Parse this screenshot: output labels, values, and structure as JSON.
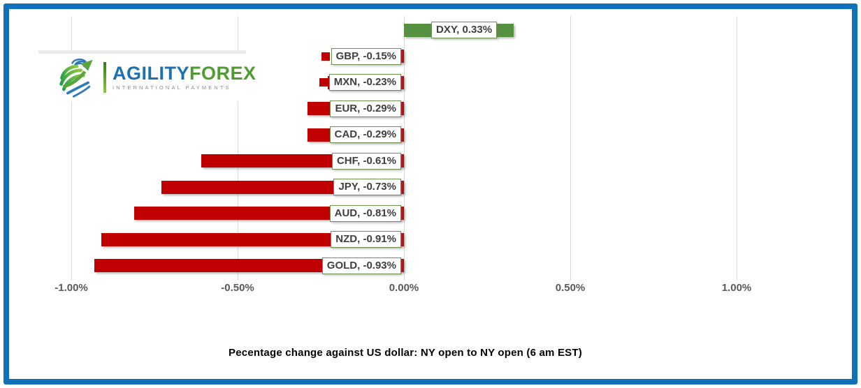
{
  "frame": {
    "border_color": "#0f72b8"
  },
  "logo": {
    "brand_part1": "AGILITY",
    "brand_part2": "FOREX",
    "tagline": "INTERNATIONAL PAYMENTS",
    "colors": {
      "agility_blue": "#1d71ae",
      "forex_green": "#4f9d31",
      "tagline_gray": "#8c8c8c"
    }
  },
  "chart_data": {
    "type": "bar",
    "orientation": "horizontal",
    "title": "Pecentage change against US dollar: NY open to NY open  (6 am EST)",
    "categories": [
      "DXY",
      "GBP",
      "MXN",
      "EUR",
      "CAD",
      "CHF",
      "JPY",
      "AUD",
      "NZD",
      "GOLD"
    ],
    "values": [
      0.33,
      -0.15,
      -0.23,
      -0.29,
      -0.29,
      -0.61,
      -0.73,
      -0.81,
      -0.91,
      -0.93
    ],
    "labels": [
      "DXY, 0.33%",
      "GBP, -0.15%",
      "MXN, -0.23%",
      "EUR, -0.29%",
      "CAD, -0.29%",
      "CHF, -0.61%",
      "JPY, -0.73%",
      "AUD, -0.81%",
      "NZD, -0.91%",
      "GOLD, -0.93%"
    ],
    "x_axis": {
      "ticks": [
        {
          "label": "-1.00%",
          "value": -1.0
        },
        {
          "label": "-0.50%",
          "value": -0.5
        },
        {
          "label": "0.00%",
          "value": 0.0
        },
        {
          "label": "0.50%",
          "value": 0.5
        },
        {
          "label": "1.00%",
          "value": 1.0
        }
      ]
    },
    "xlim": [
      -1.2,
      1.35
    ],
    "grid": true,
    "legend": "none",
    "colors": {
      "positive_color": "#559141",
      "negative_color": "#c00000",
      "label_box_fill": "#ffffff",
      "label_box_border": "#6f9150",
      "label_text_color": "#3f3f3f",
      "axis_text_color": "#595959",
      "gridline_color": "#d9d9d9"
    }
  }
}
